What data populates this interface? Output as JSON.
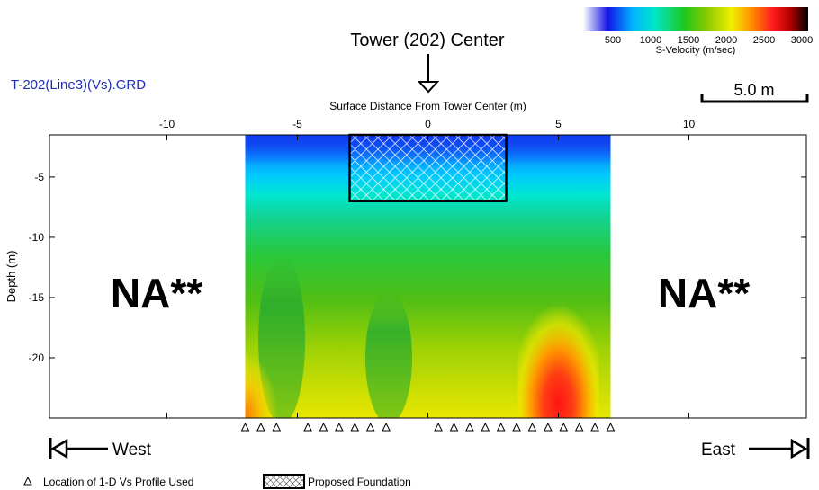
{
  "file_title": "T-202(Line3)(Vs).GRD",
  "tower_label": "Tower (202) Center",
  "scale_bar_label": "5.0 m",
  "direction_west": "West",
  "direction_east": "East",
  "na_left": "NA**",
  "na_right": "NA**",
  "legend": {
    "marker_label": "Location of 1-D Vs Profile Used",
    "foundation_label": "Proposed Foundation"
  },
  "colorbar": {
    "title": "S-Velocity (m/sec)",
    "ticks": [
      "500",
      "1000",
      "1500",
      "2000",
      "2500",
      "3000"
    ],
    "stops": [
      "#ffffff",
      "#1414e6",
      "#00b4ff",
      "#00e6c8",
      "#1ec81e",
      "#8cc800",
      "#f0f000",
      "#ff8c00",
      "#ff1e1e",
      "#b40000",
      "#000000"
    ]
  },
  "chart_data": {
    "type": "heatmap",
    "title": "T-202(Line3)(Vs).GRD",
    "xlabel": "Surface Distance From Tower Center (m)",
    "ylabel": "Depth (m)",
    "x_ticks": [
      "-10",
      "-5",
      "0",
      "5",
      "10"
    ],
    "y_ticks": [
      "-5",
      "-10",
      "-15",
      "-20"
    ],
    "xlim": [
      -14.5,
      14.5
    ],
    "ylim": [
      -25,
      -1.5
    ],
    "data_extent_x": [
      -7,
      7
    ],
    "grid": false,
    "colorscale_range": [
      0,
      3000
    ],
    "colorscale_label": "S-Velocity (m/sec)",
    "profile_locations_x": [
      -7,
      -6.4,
      -5.8,
      -4.6,
      -4,
      -3.4,
      -2.8,
      -2.2,
      -1.6,
      0.4,
      1,
      1.6,
      2.2,
      2.8,
      3.4,
      4,
      4.6,
      5.2,
      5.8,
      6.4,
      7
    ],
    "foundation": {
      "x_range": [
        -3,
        3
      ],
      "depth_range": [
        -1.5,
        -7
      ]
    },
    "tower_center_x": 0,
    "scale_bar_m": 5.0,
    "velocity_layers": [
      {
        "depth": -1.5,
        "velocity": 600
      },
      {
        "depth": -4,
        "velocity": 900
      },
      {
        "depth": -6,
        "velocity": 1100
      },
      {
        "depth": -8,
        "velocity": 1400
      },
      {
        "depth": -12,
        "velocity": 1750
      },
      {
        "depth": -18,
        "velocity": 1950
      },
      {
        "depth": -25,
        "velocity": 2200
      }
    ],
    "anomalies": [
      {
        "label": "high-velocity zone",
        "x": 5,
        "depth_range": [
          -13.5,
          -25
        ],
        "max_velocity": 2700
      },
      {
        "label": "low-velocity zone",
        "x": -5.6,
        "depth_range": [
          -10,
          -24
        ],
        "min_velocity": 1500
      },
      {
        "label": "low-velocity zone",
        "x": -1.5,
        "depth_range": [
          -13,
          -24
        ],
        "min_velocity": 1500
      }
    ]
  }
}
